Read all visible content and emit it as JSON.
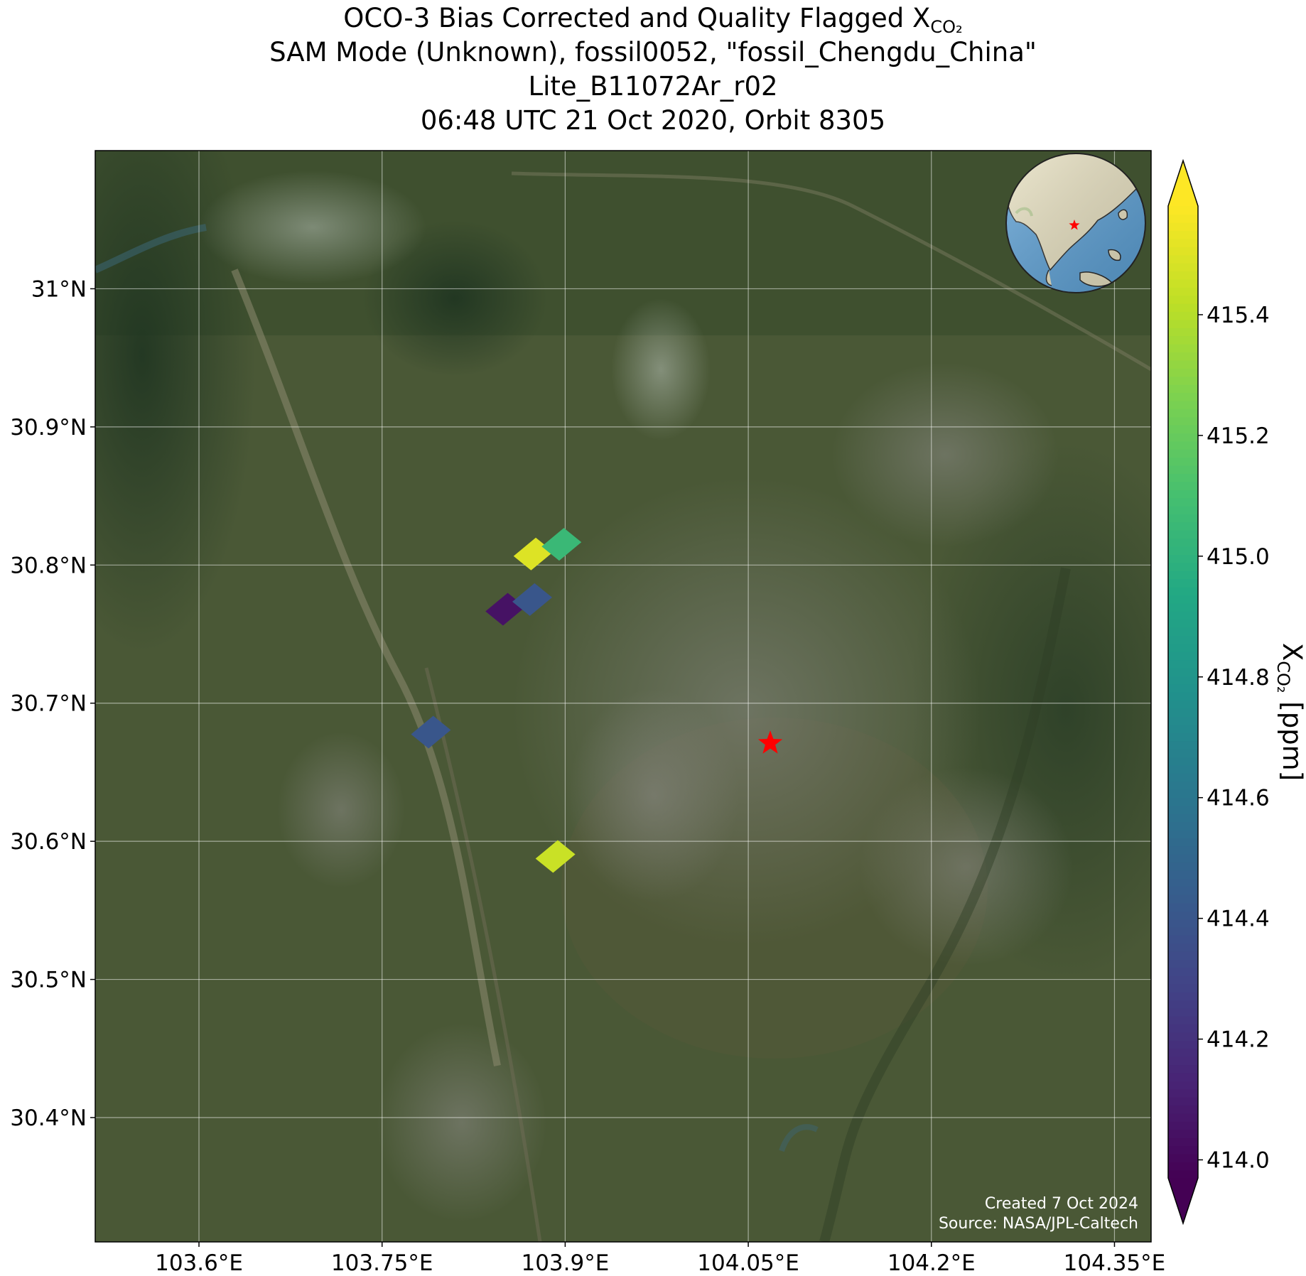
{
  "title": {
    "line1_prefix": "OCO-3 Bias Corrected and Quality Flagged X",
    "line1_sub": "CO₂",
    "line2": "SAM Mode (Unknown), fossil0052, \"fossil_Chengdu_China\"",
    "line3": "Lite_B11072Ar_r02",
    "line4": "06:48 UTC 21 Oct 2020, Orbit 8305"
  },
  "map": {
    "lon_range": [
      103.515,
      104.38
    ],
    "lat_range": [
      30.31,
      31.1
    ],
    "lon_ticks": [
      {
        "value": 103.6,
        "label": "103.6°E"
      },
      {
        "value": 103.75,
        "label": "103.75°E"
      },
      {
        "value": 103.9,
        "label": "103.9°E"
      },
      {
        "value": 104.05,
        "label": "104.05°E"
      },
      {
        "value": 104.2,
        "label": "104.2°E"
      },
      {
        "value": 104.35,
        "label": "104.35°E"
      }
    ],
    "lat_ticks": [
      {
        "value": 30.4,
        "label": "30.4°N"
      },
      {
        "value": 30.5,
        "label": "30.5°N"
      },
      {
        "value": 30.6,
        "label": "30.6°N"
      },
      {
        "value": 30.7,
        "label": "30.7°N"
      },
      {
        "value": 30.8,
        "label": "30.8°N"
      },
      {
        "value": 30.9,
        "label": "30.9°N"
      },
      {
        "value": 31.0,
        "label": "31°N"
      }
    ],
    "grid": true,
    "background": "satellite imagery",
    "target_marker": {
      "lon": 104.068,
      "lat": 30.671,
      "color": "#ff0000",
      "symbol": "star"
    },
    "inset_globe": {
      "position": "top-right",
      "ocean_color": "#5b9fd4",
      "land_color": "#e6dfbf",
      "marker_color": "#ff0000"
    },
    "credits": {
      "line1": "Created 7 Oct 2024",
      "line2": "Source: NASA/JPL-Caltech"
    }
  },
  "chart_data": {
    "type": "heatmap",
    "description_units": "ppm",
    "soundings": [
      {
        "lon": 103.874,
        "lat": 30.808,
        "xco2": 415.5
      },
      {
        "lon": 103.897,
        "lat": 30.815,
        "xco2": 415.05
      },
      {
        "lon": 103.851,
        "lat": 30.768,
        "xco2": 414.05
      },
      {
        "lon": 103.873,
        "lat": 30.775,
        "xco2": 414.4
      },
      {
        "lon": 103.79,
        "lat": 30.679,
        "xco2": 414.4
      },
      {
        "lon": 103.892,
        "lat": 30.589,
        "xco2": 415.45
      }
    ],
    "colorbar": {
      "min": 413.97,
      "max": 415.58,
      "ticks": [
        {
          "value": 414.0,
          "label": "414.0"
        },
        {
          "value": 414.2,
          "label": "414.2"
        },
        {
          "value": 414.4,
          "label": "414.4"
        },
        {
          "value": 414.6,
          "label": "414.6"
        },
        {
          "value": 414.8,
          "label": "414.8"
        },
        {
          "value": 415.0,
          "label": "415.0"
        },
        {
          "value": 415.2,
          "label": "415.2"
        },
        {
          "value": 415.4,
          "label": "415.4"
        }
      ],
      "extend": "both",
      "colormap": "viridis",
      "label_prefix": "X",
      "label_sub": "CO₂",
      "label_suffix": " [ppm]"
    }
  }
}
